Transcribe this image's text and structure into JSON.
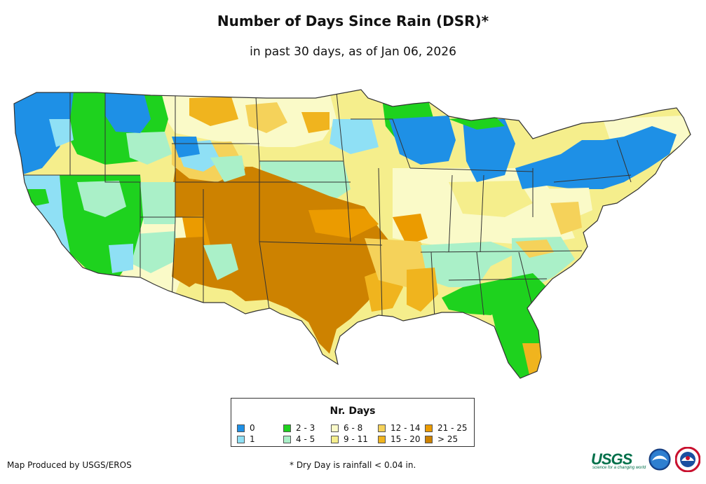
{
  "title": "Number of Days Since Rain (DSR)*",
  "subtitle": "in past 30 days, as of Jan 06, 2026",
  "legend": {
    "title": "Nr. Days",
    "items": [
      {
        "label": "0",
        "color": "#1e90e6"
      },
      {
        "label": "1",
        "color": "#8fe0f5"
      },
      {
        "label": "2 - 3",
        "color": "#1ed21e"
      },
      {
        "label": "4 - 5",
        "color": "#aaf0c8"
      },
      {
        "label": "6 - 8",
        "color": "#fafac8"
      },
      {
        "label": "9 - 11",
        "color": "#f5ee8c"
      },
      {
        "label": "12 - 14",
        "color": "#f5d25a"
      },
      {
        "label": "15 - 20",
        "color": "#f0b41e"
      },
      {
        "label": "21 - 25",
        "color": "#eb9b00"
      },
      {
        "label": "> 25",
        "color": "#cd8200"
      }
    ]
  },
  "credit": "Map Produced by USGS/EROS",
  "footnote": "* Dry Day is rainfall < 0.04 in.",
  "logos": {
    "usgs": {
      "wordmark": "USGS",
      "tagline": "science for a changing world"
    },
    "noaa": "NOAA",
    "nws": "National Weather Service"
  }
}
